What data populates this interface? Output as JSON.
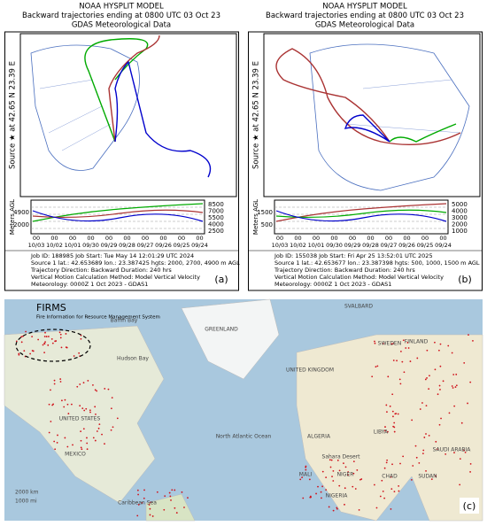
{
  "panels": [
    {
      "header": [
        "NOAA HYSPLIT MODEL",
        "Backward trajectories ending at 0800 UTC 03 Oct 23",
        "GDAS Meteorological Data"
      ],
      "side_label": "Source ★ at 42.65 N 23.39 E",
      "y_axis_label": "Meters AGL",
      "left_ticks": [
        "4900",
        "2000"
      ],
      "right_ticks": [
        "8500",
        "7000",
        "5500",
        "4000",
        "2500"
      ],
      "hour_ticks": [
        "00",
        "00",
        "00",
        "00",
        "00",
        "00",
        "00",
        "00",
        "00",
        "00"
      ],
      "dates": [
        "10/03",
        "10/02",
        "10/01",
        "09/30",
        "09/29",
        "09/28",
        "09/27",
        "09/26",
        "09/25",
        "09/24"
      ],
      "info": [
        "Job ID: 188985          Job Start: Tue May 14 12:01:29 UTC 2024",
        "Source 1 lat.: 42.653689 lon.: 23.387425  hgts: 2000, 2700, 4900 m AGL",
        "Trajectory Direction: Backward      Duration: 240 hrs",
        "Vertical Motion Calculation Method:      Model Vertical Velocity",
        "Meteorology: 0000Z 1 Oct 2023 - GDAS1"
      ],
      "panel_label": "(a)"
    },
    {
      "header": [
        "NOAA HYSPLIT MODEL",
        "Backward trajectories ending at 0800 UTC 03 Oct 23",
        "GDAS Meteorological Data"
      ],
      "side_label": "Source ★ at 42.65 N 23.39 E",
      "y_axis_label": "Meters AGL",
      "left_ticks": [
        "1500",
        "500"
      ],
      "right_ticks": [
        "5000",
        "4000",
        "3000",
        "2000",
        "1000"
      ],
      "hour_ticks": [
        "00",
        "00",
        "00",
        "00",
        "00",
        "00",
        "00",
        "00",
        "00",
        "00"
      ],
      "dates": [
        "10/03",
        "10/02",
        "10/01",
        "09/30",
        "09/29",
        "09/28",
        "09/27",
        "09/26",
        "09/25",
        "09/24"
      ],
      "info": [
        "Job ID: 155038          Job Start: Fri Apr 25 13:52:01 UTC 2025",
        "Source 1 lat.: 42.653677 lon.: 23.387398  hgts: 500, 1000, 1500 m AGL",
        "Trajectory Direction: Backward      Duration: 240 hrs",
        "Vertical Motion Calculation Method:      Model Vertical Velocity",
        "Meteorology: 0000Z 1 Oct 2023 - GDAS1"
      ],
      "panel_label": "(b)"
    }
  ],
  "map": {
    "title": "FIRMS",
    "subtitle": "Fire Information for Resource Management System",
    "labels": [
      "GREENLAND",
      "Baffin Bay",
      "Hudson Bay",
      "SVALBARD",
      "SWEDEN",
      "FINLAND",
      "UNITED KINGDOM",
      "UNITED STATES",
      "MEXICO",
      "North Atlantic Ocean",
      "Caribbean Sea",
      "ALGERIA",
      "LIBYA",
      "Sahara Desert",
      "MALI",
      "NIGER",
      "CHAD",
      "SUDAN",
      "NIGERIA",
      "SAUDI ARABIA"
    ],
    "scale": [
      "2000 km",
      "1000 mi"
    ],
    "panel_label": "(c)"
  }
}
